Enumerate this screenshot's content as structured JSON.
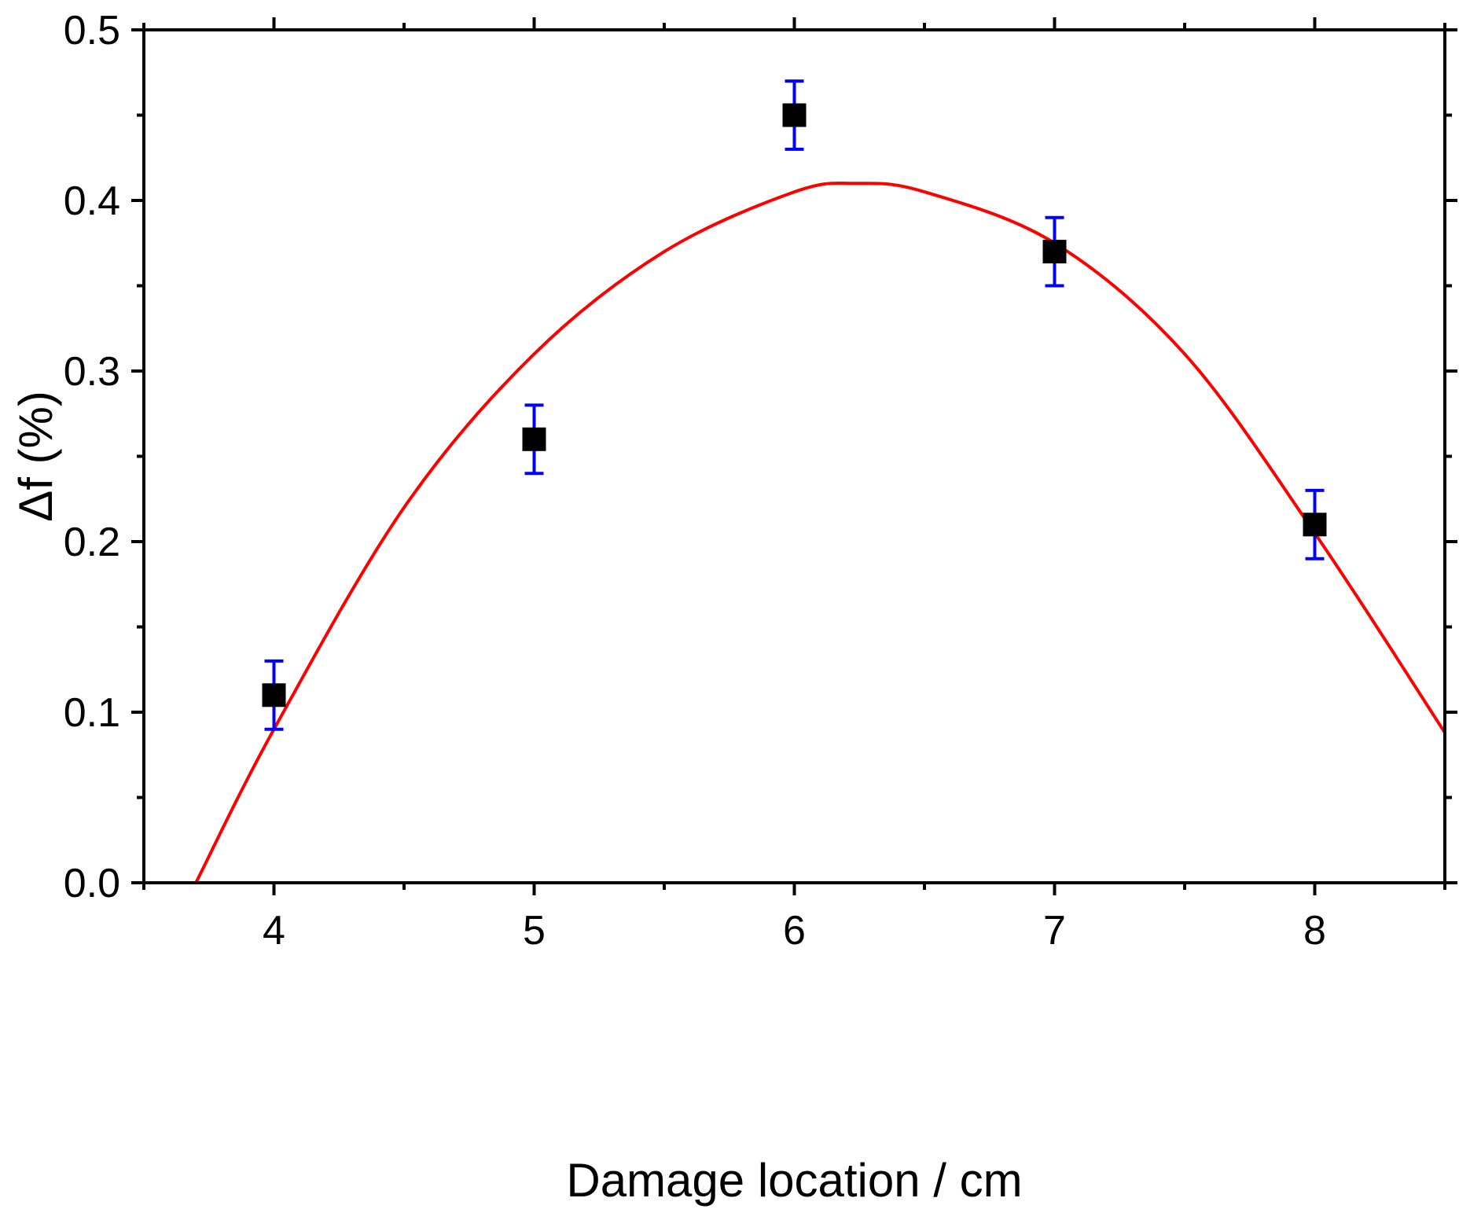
{
  "chart_data": {
    "type": "scatter",
    "title": "",
    "xlabel": "Damage location / cm",
    "ylabel": "Δf (%)",
    "xlim": [
      3.5,
      8.5
    ],
    "ylim": [
      0.0,
      0.5
    ],
    "x_ticks": [
      4,
      5,
      6,
      7,
      8
    ],
    "x_tick_labels": [
      "4",
      "5",
      "6",
      "7",
      "8"
    ],
    "y_ticks": [
      0.0,
      0.1,
      0.2,
      0.3,
      0.4,
      0.5
    ],
    "y_tick_labels": [
      "0.0",
      "0.1",
      "0.2",
      "0.3",
      "0.4",
      "0.5"
    ],
    "y_minor_step": 0.05,
    "grid": false,
    "legend": "none",
    "series": [
      {
        "type": "scatter",
        "x": [
          4,
          5,
          6,
          7,
          8
        ],
        "y": [
          0.11,
          0.26,
          0.45,
          0.37,
          0.21
        ],
        "error": [
          0.02,
          0.02,
          0.02,
          0.02,
          0.02
        ],
        "marker_color": "#000000",
        "error_color": "#0000ff"
      },
      {
        "type": "line",
        "x": [
          3.7,
          4.0,
          4.5,
          5.0,
          5.5,
          6.0,
          6.24,
          6.5,
          7.0,
          7.5,
          8.0,
          8.5
        ],
        "y": [
          0.0,
          0.09,
          0.22,
          0.31,
          0.37,
          0.405,
          0.41,
          0.405,
          0.375,
          0.31,
          0.205,
          0.088
        ],
        "color": "#ff0000"
      }
    ]
  }
}
